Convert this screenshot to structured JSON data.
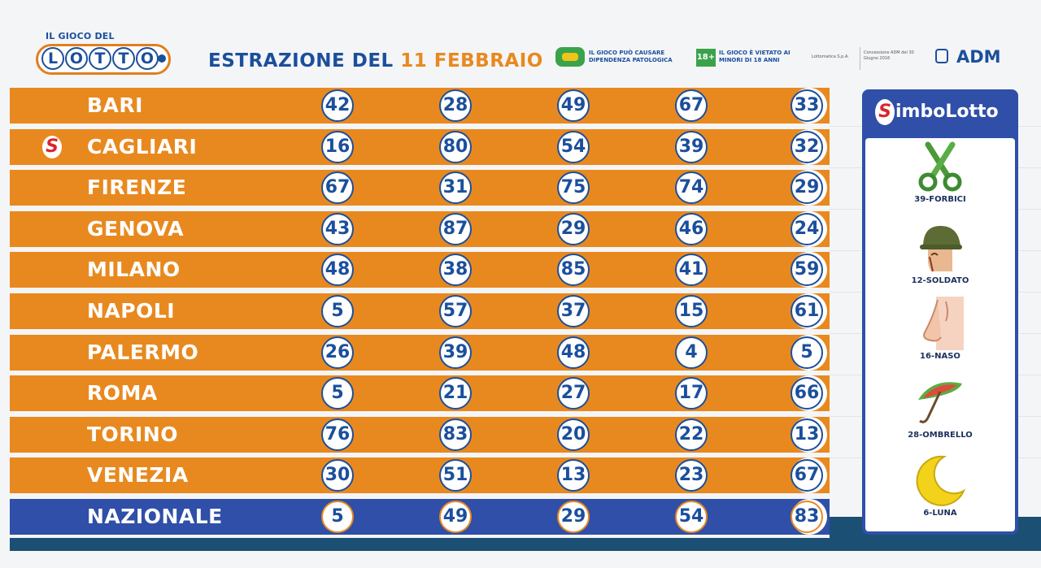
{
  "header": {
    "logo_top": "IL GIOCO DEL",
    "logo_letters": [
      "L",
      "O",
      "T",
      "T",
      "O"
    ],
    "title_prefix": "ESTRAZIONE DEL",
    "title_date": "11 FEBBRAIO",
    "warning1": "IL GIOCO PUÒ CAUSARE DIPENDENZA PATOLOGICA",
    "badge": "18+",
    "warning2": "IL GIOCO È VIETATO AI MINORI DI 18 ANNI",
    "org_small": "Lottomatica S.p.A.",
    "concession_small": "Concessione ADM del 30 Giugno 2016",
    "adm": "ADM"
  },
  "colors": {
    "orange": "#e8891f",
    "blue": "#1b4f9c",
    "nazionale": "#2f4fa8",
    "symbol_red": "#d8262e"
  },
  "rows": [
    {
      "city": "BARI",
      "numbers": [
        "42",
        "28",
        "49",
        "67",
        "33"
      ]
    },
    {
      "city": "CAGLIARI",
      "numbers": [
        "16",
        "80",
        "54",
        "39",
        "32"
      ],
      "marker": "S"
    },
    {
      "city": "FIRENZE",
      "numbers": [
        "67",
        "31",
        "75",
        "74",
        "29"
      ]
    },
    {
      "city": "GENOVA",
      "numbers": [
        "43",
        "87",
        "29",
        "46",
        "24"
      ]
    },
    {
      "city": "MILANO",
      "numbers": [
        "48",
        "38",
        "85",
        "41",
        "59"
      ]
    },
    {
      "city": "NAPOLI",
      "numbers": [
        "5",
        "57",
        "37",
        "15",
        "61"
      ]
    },
    {
      "city": "PALERMO",
      "numbers": [
        "26",
        "39",
        "48",
        "4",
        "5"
      ]
    },
    {
      "city": "ROMA",
      "numbers": [
        "5",
        "21",
        "27",
        "17",
        "66"
      ]
    },
    {
      "city": "TORINO",
      "numbers": [
        "76",
        "83",
        "20",
        "22",
        "13"
      ]
    },
    {
      "city": "VENEZIA",
      "numbers": [
        "30",
        "51",
        "13",
        "23",
        "67"
      ]
    },
    {
      "city": "NAZIONALE",
      "numbers": [
        "5",
        "49",
        "29",
        "54",
        "83"
      ]
    }
  ],
  "simbolotto": {
    "s_letter": "S",
    "title_rest": "imboLotto",
    "symbols": [
      {
        "label": "39-FORBICI",
        "icon": "scissors-icon"
      },
      {
        "label": "12-SOLDATO",
        "icon": "soldier-icon"
      },
      {
        "label": "16-NASO",
        "icon": "nose-icon"
      },
      {
        "label": "28-OMBRELLO",
        "icon": "umbrella-icon"
      },
      {
        "label": "6-LUNA",
        "icon": "moon-icon"
      }
    ]
  }
}
